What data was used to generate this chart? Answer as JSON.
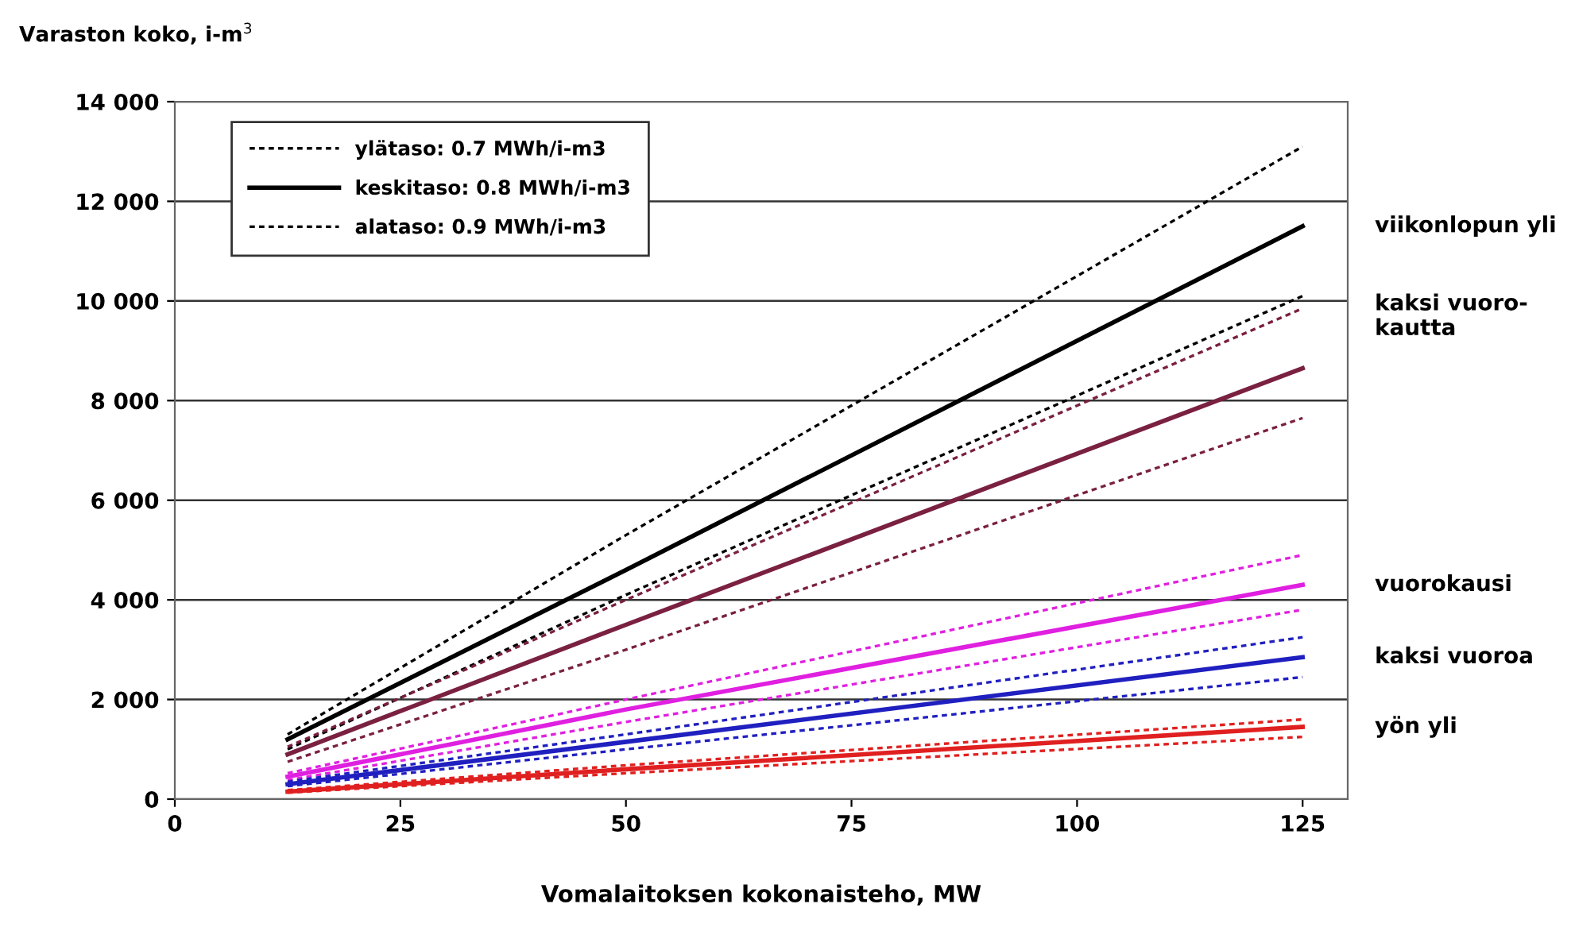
{
  "chart_data": {
    "type": "line",
    "ylabel": "Varaston koko, i-m$^{3}$",
    "xlabel": "Vomalaitoksen kokonaisteho, MW",
    "x": [
      12.5,
      50,
      125
    ],
    "series": [
      {
        "name": "ylätaso: 0.7 MWh/i-m3",
        "color": "#000000",
        "line_style": "dotted",
        "values": [
          1300,
          5300,
          13100
        ]
      },
      {
        "name": "keskitaso: 0.8 MWh/i-m3",
        "color": "#000000",
        "line_style": "solid",
        "values": [
          1200,
          4600,
          11500
        ]
      },
      {
        "name": "alataso: 0.9 MWh/i-m3",
        "color": "#000000",
        "line_style": "dotted",
        "values": [
          1000,
          4100,
          10100
        ]
      },
      {
        "color": "#7a2040",
        "line_style": "dotted",
        "values": [
          1050,
          4000,
          9850
        ]
      },
      {
        "color": "#7a2040",
        "line_style": "solid",
        "values": [
          900,
          3500,
          8650
        ]
      },
      {
        "color": "#7a2040",
        "line_style": "dotted",
        "values": [
          750,
          3000,
          7650
        ]
      },
      {
        "color": "#e020e0",
        "line_style": "dotted",
        "values": [
          520,
          2000,
          4900
        ]
      },
      {
        "color": "#e020e0",
        "line_style": "solid",
        "values": [
          450,
          1800,
          4300
        ]
      },
      {
        "color": "#e020e0",
        "line_style": "dotted",
        "values": [
          380,
          1550,
          3800
        ]
      },
      {
        "color": "#2020c0",
        "line_style": "dotted",
        "values": [
          350,
          1300,
          3250
        ]
      },
      {
        "color": "#2020c0",
        "line_style": "solid",
        "values": [
          300,
          1150,
          2850
        ]
      },
      {
        "color": "#2020c0",
        "line_style": "dotted",
        "values": [
          260,
          1000,
          2450
        ]
      },
      {
        "color": "#e02020",
        "line_style": "dotted",
        "values": [
          180,
          680,
          1600
        ]
      },
      {
        "color": "#e02020",
        "line_style": "solid",
        "values": [
          150,
          600,
          1450
        ]
      },
      {
        "color": "#e02020",
        "line_style": "dotted",
        "values": [
          130,
          520,
          1250
        ]
      }
    ],
    "annotations": [
      "viikonlopun yli",
      "kaksi vuoro-\nkautta",
      "vuorokausi",
      "kaksi vuoroa",
      "yön yli"
    ],
    "xlim": [
      0,
      130
    ],
    "xticks": [
      0,
      25,
      50,
      75,
      100,
      125
    ],
    "ylim": [
      0,
      14000
    ],
    "yticks": [
      {
        "value": 0,
        "label": "0"
      },
      {
        "value": 2000,
        "label": "2 000"
      },
      {
        "value": 4000,
        "label": "4 000"
      },
      {
        "value": 6000,
        "label": "6 000"
      },
      {
        "value": 8000,
        "label": "8 000"
      },
      {
        "value": 10000,
        "label": "10 000"
      },
      {
        "value": 12000,
        "label": "12 000"
      },
      {
        "value": 14000,
        "label": "14 000"
      }
    ],
    "grid": "y",
    "legend": "top left",
    "marker": "none"
  }
}
